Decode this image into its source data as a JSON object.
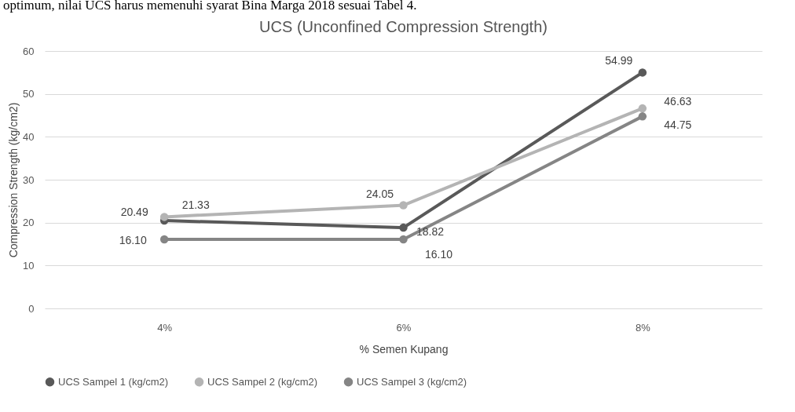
{
  "chart_data": {
    "type": "line",
    "title": "UCS (Unconfined Compression Strength)",
    "xlabel": "% Semen Kupang",
    "ylabel": "Compression Strength (kg/cm2)",
    "annotations": [
      "optimum, nilai UCS harus memenuhi syarat Bina Marga 2018 sesuai Tabel 4."
    ],
    "categories": [
      "4%",
      "6%",
      "8%"
    ],
    "series": [
      {
        "name": "UCS Sampel 1 (kg/cm2)",
        "color": "#595959",
        "values": [
          20.49,
          18.82,
          54.99
        ],
        "value_labels": [
          "20.49",
          "18.82",
          "54.99"
        ]
      },
      {
        "name": "UCS Sampel 2 (kg/cm2)",
        "color": "#b4b4b4",
        "values": [
          21.33,
          24.05,
          46.63
        ],
        "value_labels": [
          "21.33",
          "24.05",
          "46.63"
        ]
      },
      {
        "name": "UCS Sampel 3 (kg/cm2)",
        "color": "#858585",
        "values": [
          16.1,
          16.1,
          44.75
        ],
        "value_labels": [
          "16.10",
          "16.10",
          "44.75"
        ]
      }
    ],
    "ylim": [
      0,
      60
    ],
    "yticks": [
      0,
      10,
      20,
      30,
      40,
      50,
      60
    ],
    "grid": "y",
    "legend": "bottom",
    "marker": "circle",
    "line_style": "solid"
  }
}
